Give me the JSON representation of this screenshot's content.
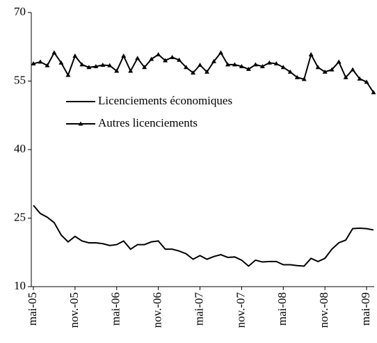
{
  "chart_data": {
    "type": "line",
    "categories": [
      "mai-05",
      null,
      null,
      null,
      null,
      null,
      "nov.-05",
      null,
      null,
      null,
      null,
      null,
      "mai-06",
      null,
      null,
      null,
      null,
      null,
      "nov.-06",
      null,
      null,
      null,
      null,
      null,
      "mai-07",
      null,
      null,
      null,
      null,
      null,
      "nov.-07",
      null,
      null,
      null,
      null,
      null,
      "mai-08",
      null,
      null,
      null,
      null,
      null,
      "nov.-08",
      null,
      null,
      null,
      null,
      null,
      "mai-09",
      null
    ],
    "series": [
      {
        "name": "Licenciements économiques",
        "color": "#000000",
        "marker": "none",
        "values": [
          27.8,
          26,
          25.2,
          24,
          21.3,
          19.8,
          21,
          20,
          19.6,
          19.6,
          19.4,
          19,
          19.2,
          20,
          18.2,
          19.2,
          19.2,
          19.8,
          20,
          18.2,
          18.2,
          17.8,
          17.2,
          16,
          16.8,
          16,
          16.6,
          17,
          16.4,
          16.5,
          15.8,
          14.5,
          15.8,
          15.4,
          15.5,
          15.5,
          14.8,
          14.8,
          14.6,
          14.5,
          16.2,
          15.5,
          16.2,
          18.2,
          19.6,
          20.2,
          22.7,
          22.8,
          22.7,
          22.4
        ]
      },
      {
        "name": "Autres licenciements",
        "color": "#000000",
        "marker": "triangle",
        "values": [
          58.8,
          59.2,
          58.4,
          61.2,
          59,
          56.3,
          60.5,
          58.6,
          58,
          58.2,
          58.5,
          58.4,
          57.2,
          60.5,
          57.2,
          60,
          58,
          59.8,
          60.8,
          59.5,
          60.2,
          59.6,
          58,
          56.8,
          58.5,
          57,
          59.3,
          61.2,
          58.6,
          58.6,
          58.2,
          57.6,
          58.6,
          58.2,
          59,
          58.8,
          58,
          57,
          55.8,
          55.4,
          60.8,
          58,
          57,
          57.5,
          59.2,
          55.8,
          57.5,
          55.5,
          54.8,
          52.5
        ]
      }
    ],
    "ylim": [
      10,
      70
    ],
    "yticks": [
      10,
      25,
      40,
      55,
      70
    ],
    "grid": false,
    "legend": "upper left"
  }
}
